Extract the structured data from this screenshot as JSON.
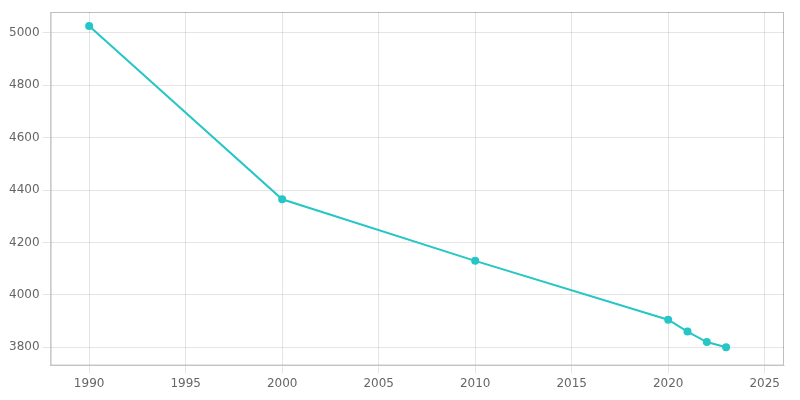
{
  "chart_data": {
    "type": "line",
    "x": [
      1990,
      2000,
      2010,
      2020,
      2021,
      2022,
      2023
    ],
    "values": [
      5027,
      4365,
      4130,
      3905,
      3860,
      3820,
      3800
    ],
    "color": "#26c6c6",
    "marker": "circle",
    "xlim": [
      1988,
      2026
    ],
    "xticks": [
      1990,
      1995,
      2000,
      2005,
      2010,
      2015,
      2020,
      2025
    ],
    "ylim": [
      3730,
      5080
    ],
    "yticks": [
      3800,
      4000,
      4200,
      4400,
      4600,
      4800,
      5000
    ],
    "grid": true
  }
}
